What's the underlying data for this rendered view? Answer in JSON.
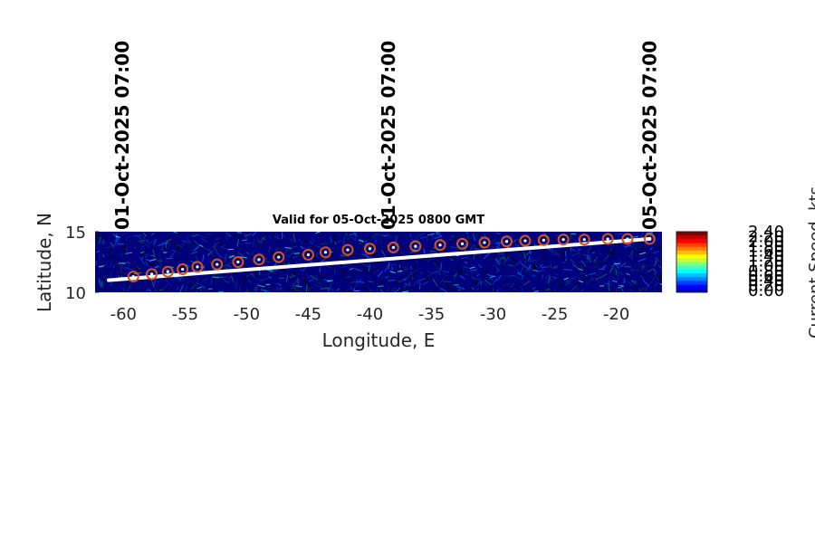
{
  "chart_data": {
    "type": "scatter",
    "title": "Valid for 05-Oct-2025 0800 GMT",
    "xlabel": "Longitude, E",
    "ylabel": "Latitude, N",
    "xlim": [
      -62.3,
      -16.3
    ],
    "ylim": [
      10,
      15
    ],
    "xticks": [
      -60,
      -55,
      -50,
      -45,
      -40,
      -35,
      -30,
      -25,
      -20
    ],
    "yticks": [
      10,
      15
    ],
    "xtick_labels": [
      "-60",
      "-55",
      "-50",
      "-45",
      "-40",
      "-35",
      "-30",
      "-25",
      "-20"
    ],
    "ytick_labels": [
      "10",
      "15"
    ],
    "background": "ocean current speed field (jet colormap, mostly dark blue with faint cyan streaks)",
    "track_line": {
      "name": "route",
      "color": "#ffffff",
      "x": [
        -61.2,
        -17.3
      ],
      "y": [
        11.0,
        14.4
      ]
    },
    "track_points": {
      "name": "waypoints",
      "marker": "open circle with white dot",
      "color": "#d95319",
      "x": [
        -59.2,
        -57.7,
        -56.4,
        -55.2,
        -54.0,
        -52.4,
        -50.7,
        -49.0,
        -47.4,
        -45.0,
        -43.6,
        -41.8,
        -40.0,
        -38.1,
        -36.3,
        -34.3,
        -32.5,
        -30.7,
        -28.9,
        -27.4,
        -25.9,
        -24.3,
        -22.6,
        -20.7,
        -19.1,
        -17.3
      ],
      "y": [
        11.3,
        11.5,
        11.7,
        11.9,
        12.1,
        12.3,
        12.5,
        12.7,
        12.9,
        13.1,
        13.3,
        13.5,
        13.6,
        13.7,
        13.8,
        13.9,
        14.0,
        14.1,
        14.2,
        14.25,
        14.3,
        14.35,
        14.35,
        14.4,
        14.4,
        14.4
      ]
    },
    "date_annotations": [
      {
        "text": "01-Oct-2025 07:00",
        "x": -60.1
      },
      {
        "text": "01-Oct-2025 07:00",
        "x": -38.5
      },
      {
        "text": "05-Oct-2025 07:00",
        "x": -17.3
      }
    ],
    "colorbar": {
      "title": "Current Speed, kts",
      "labels": [
        "2.40",
        "2.20",
        "2.00",
        "1.80",
        "1.60",
        "1.40",
        "1.20",
        "1.00",
        "0.80",
        "0.60",
        "0.40",
        "0.20",
        "0.00"
      ],
      "colors": [
        "#800000",
        "#c00000",
        "#ff0000",
        "#ff4000",
        "#ff8000",
        "#ffc000",
        "#ffff00",
        "#c0ff40",
        "#80ff80",
        "#40ffc0",
        "#00ffff",
        "#00c0ff",
        "#0080ff",
        "#0040ff",
        "#0000ff",
        "#0000c0"
      ]
    }
  }
}
